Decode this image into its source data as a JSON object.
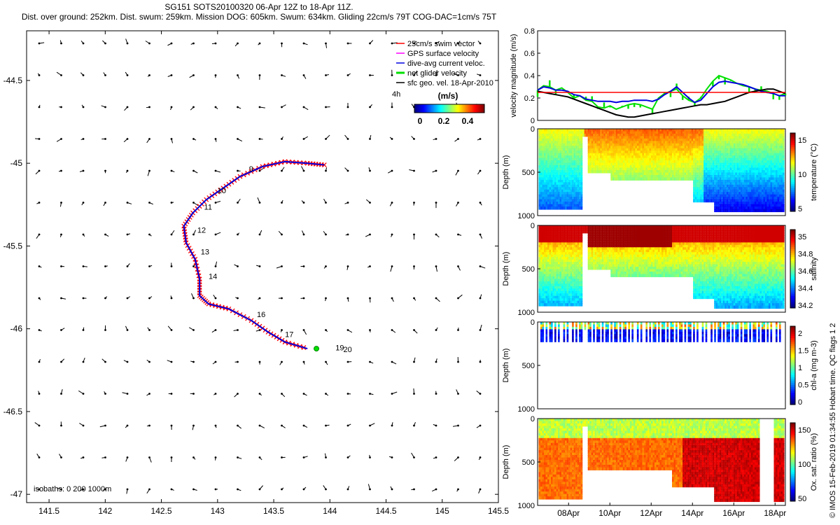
{
  "title_line1": "SG151 SOTS20100320 06-Apr 12Z to 18-Apr 11Z.",
  "title_line2": "Dist. over ground: 252km. Dist. swum: 259km. Mission DOG: 605km. Swum: 634km. Gliding 22cm/s 79T COG-DAC=1cm/s 75T",
  "credit": "© IMOS 15-Feb-2019 01:34:55 Hobart time. QC flags 1  2",
  "colors": {
    "red": "#ff0000",
    "blue": "#0000e0",
    "green": "#00e000",
    "magenta": "#ff00ff",
    "black": "#000000"
  },
  "chart_data": [
    {
      "type": "scatter",
      "name": "map",
      "x_ticks": [
        "141.5",
        "142",
        "142.5",
        "143",
        "143.5",
        "144",
        "144.5",
        "145",
        "145.5"
      ],
      "y_ticks": [
        "-44.5",
        "-45",
        "-45.5",
        "-46",
        "-46.5",
        "-47"
      ],
      "xlim": [
        141.3,
        145.5
      ],
      "ylim": [
        -47.05,
        -44.2
      ],
      "legend": {
        "position": "top-right",
        "items": [
          "25cm/s swim vector",
          "GPS surface velocity",
          "dive-avg current veloc.",
          "net glider velocity",
          "sfc geo. vel. 18-Apr-2010"
        ],
        "label_4h": "4h",
        "colorbar_title": "(m/s)",
        "colorbar_ticks": [
          "0",
          "0.2",
          "0.4"
        ]
      },
      "track": [
        [
          143.95,
          -45.01
        ],
        [
          143.8,
          -45.0
        ],
        [
          143.6,
          -44.99
        ],
        [
          143.4,
          -45.02
        ],
        [
          143.2,
          -45.08
        ],
        [
          143.05,
          -45.15
        ],
        [
          142.9,
          -45.22
        ],
        [
          142.78,
          -45.3
        ],
        [
          142.7,
          -45.38
        ],
        [
          142.72,
          -45.48
        ],
        [
          142.8,
          -45.58
        ],
        [
          142.84,
          -45.7
        ],
        [
          142.84,
          -45.8
        ],
        [
          142.92,
          -45.85
        ],
        [
          143.1,
          -45.88
        ],
        [
          143.3,
          -45.95
        ],
        [
          143.45,
          -46.02
        ],
        [
          143.6,
          -46.08
        ],
        [
          143.8,
          -46.12
        ]
      ],
      "track_endpoint": [
        143.88,
        -46.12
      ],
      "day_labels": [
        {
          "t": "9",
          "x": 143.28,
          "y": -45.05
        },
        {
          "t": "10",
          "x": 143.0,
          "y": -45.18
        },
        {
          "t": "11",
          "x": 142.88,
          "y": -45.28
        },
        {
          "t": "12",
          "x": 142.82,
          "y": -45.42
        },
        {
          "t": "13",
          "x": 142.85,
          "y": -45.55
        },
        {
          "t": "14",
          "x": 142.92,
          "y": -45.7
        },
        {
          "t": "16",
          "x": 143.35,
          "y": -45.93
        },
        {
          "t": "17",
          "x": 143.6,
          "y": -46.05
        },
        {
          "t": "19",
          "x": 144.05,
          "y": -46.13
        },
        {
          "t": "20",
          "x": 144.12,
          "y": -46.14
        }
      ],
      "isobaths_label": "isobaths: 0   200  1000m"
    },
    {
      "type": "line",
      "name": "velocity",
      "ylabel": "velocity magnitude (m/s)",
      "y_ticks": [
        "0",
        "0.2",
        "0.4",
        "0.6",
        "0.8"
      ],
      "ylim": [
        0,
        0.8
      ],
      "series": [
        {
          "color": "#00e000",
          "values": [
            0.27,
            0.31,
            0.3,
            0.27,
            0.29,
            0.25,
            0.2,
            0.22,
            0.18,
            0.17,
            0.12,
            0.11,
            0.13,
            0.1,
            0.12,
            0.14,
            0.15,
            0.14,
            0.12,
            0.1,
            0.2,
            0.24,
            0.26,
            0.28,
            0.22,
            0.18,
            0.16,
            0.2,
            0.28,
            0.35,
            0.4,
            0.38,
            0.36,
            0.33,
            0.31,
            0.3,
            0.28,
            0.27,
            0.26,
            0.24,
            0.22,
            0.24
          ]
        },
        {
          "color": "#0000e0",
          "values": [
            0.27,
            0.3,
            0.29,
            0.27,
            0.27,
            0.26,
            0.23,
            0.22,
            0.19,
            0.18,
            0.17,
            0.17,
            0.17,
            0.16,
            0.17,
            0.17,
            0.18,
            0.18,
            0.18,
            0.17,
            0.19,
            0.23,
            0.26,
            0.3,
            0.25,
            0.2,
            0.16,
            0.18,
            0.24,
            0.3,
            0.34,
            0.35,
            0.34,
            0.33,
            0.32,
            0.3,
            0.28,
            0.26,
            0.25,
            0.24,
            0.22,
            0.22
          ]
        },
        {
          "color": "#000000",
          "values": [
            0.26,
            0.25,
            0.24,
            0.23,
            0.22,
            0.21,
            0.19,
            0.17,
            0.15,
            0.13,
            0.11,
            0.09,
            0.07,
            0.05,
            0.04,
            0.03,
            0.03,
            0.04,
            0.05,
            0.06,
            0.07,
            0.08,
            0.09,
            0.1,
            0.11,
            0.12,
            0.13,
            0.14,
            0.14,
            0.15,
            0.16,
            0.17,
            0.19,
            0.21,
            0.23,
            0.25,
            0.26,
            0.27,
            0.28,
            0.28,
            0.26,
            0.24
          ]
        },
        {
          "color": "#ff0000",
          "values": [
            0.25,
            0.25
          ]
        }
      ]
    },
    {
      "type": "heatmap",
      "name": "temperature",
      "ylabel": "Depth (m)",
      "colorbar_label": "temperature (°C)",
      "colorbar_ticks": [
        "5",
        "10",
        "15"
      ],
      "y_ticks": [
        "0",
        "500",
        "1000"
      ]
    },
    {
      "type": "heatmap",
      "name": "salinity",
      "ylabel": "Depth (m)",
      "colorbar_label": "salinity",
      "colorbar_ticks": [
        "34.2",
        "34.4",
        "34.6",
        "34.8",
        "35"
      ],
      "y_ticks": [
        "0",
        "500",
        "1000"
      ]
    },
    {
      "type": "heatmap",
      "name": "chl-a",
      "ylabel": "Depth (m)",
      "colorbar_label": "chl-a (mg m-3)",
      "colorbar_ticks": [
        "0",
        "0.5",
        "1",
        "1.5",
        "2"
      ],
      "y_ticks": [
        "0",
        "500",
        "1000"
      ]
    },
    {
      "type": "heatmap",
      "name": "oxygen",
      "ylabel": "Depth (m)",
      "colorbar_label": "Ox. sat. ratio (%)",
      "colorbar_ticks": [
        "50",
        "100",
        "150"
      ],
      "y_ticks": [
        "0",
        "500",
        "1000"
      ],
      "x_ticks": [
        "08Apr",
        "10Apr",
        "12Apr",
        "14Apr",
        "16Apr",
        "18Apr"
      ]
    }
  ]
}
